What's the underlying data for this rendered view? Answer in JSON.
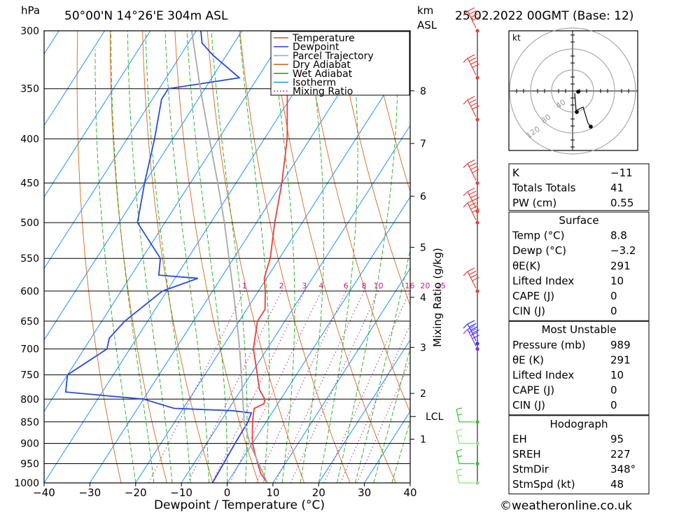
{
  "header": {
    "hpa_unit": "hPa",
    "location": "50°00'N 14°26'E 304m ASL",
    "km_unit": "km",
    "asl_unit": "ASL",
    "datetime": "25.02.2022 00GMT (Base: 12)"
  },
  "credit": "©weatheronline.co.uk",
  "colors": {
    "temperature": "#e8403a",
    "dewpoint": "#2b4bd8",
    "parcel": "#a8a8a8",
    "dry_adiabat": "#d2691e",
    "wet_adiabat": "#22aa22",
    "isotherm": "#1e90ff",
    "mixing_ratio": "#c0207a"
  },
  "chart_data": {
    "type": "line",
    "title": "50°00'N 14°26'E 304m ASL",
    "xlabel": "Dewpoint / Temperature (°C)",
    "ylabel": "hPa",
    "right_axis_label": "Mixing Ratio (g/kg)",
    "xlim": [
      -40,
      40
    ],
    "ylim": [
      1000,
      300
    ],
    "skew_deg_per_hpa_log": "skew-T",
    "x_ticks": [
      "−40",
      "−30",
      "−20",
      "−10",
      "0",
      "10",
      "20",
      "30",
      "40"
    ],
    "pressure_ticks": [
      "300",
      "350",
      "400",
      "450",
      "500",
      "550",
      "600",
      "650",
      "700",
      "750",
      "800",
      "850",
      "900",
      "950",
      "1000"
    ],
    "km_ticks": [
      "8",
      "7",
      "6",
      "5",
      "4",
      "3",
      "2",
      "1"
    ],
    "lcl_label": "LCL",
    "mixing_ratio_labels": [
      "1",
      "2",
      "3",
      "4",
      "6",
      "8",
      "10",
      "16",
      "20",
      "25"
    ],
    "legend": [
      "Temperature",
      "Dewpoint",
      "Parcel Trajectory",
      "Dry Adiabat",
      "Wet Adiabat",
      "Isotherm",
      "Mixing Ratio"
    ],
    "legend_position": "top-right",
    "series": [
      {
        "name": "Temperature",
        "points": [
          [
            1000,
            8.8
          ],
          [
            975,
            6
          ],
          [
            950,
            4
          ],
          [
            925,
            2
          ],
          [
            900,
            0
          ],
          [
            875,
            -1.5
          ],
          [
            850,
            -3
          ],
          [
            830,
            -4
          ],
          [
            820,
            -4.5
          ],
          [
            810,
            -3
          ],
          [
            800,
            -3.5
          ],
          [
            780,
            -6
          ],
          [
            750,
            -8.5
          ],
          [
            700,
            -13
          ],
          [
            650,
            -16
          ],
          [
            630,
            -16
          ],
          [
            600,
            -18.5
          ],
          [
            580,
            -20.5
          ],
          [
            570,
            -21
          ],
          [
            550,
            -22
          ],
          [
            500,
            -26
          ],
          [
            450,
            -30
          ],
          [
            400,
            -35
          ],
          [
            350,
            -42
          ],
          [
            320,
            -44
          ],
          [
            300,
            -46
          ]
        ]
      },
      {
        "name": "Dewpoint",
        "points": [
          [
            1000,
            -3.2
          ],
          [
            950,
            -3.5
          ],
          [
            900,
            -3.8
          ],
          [
            850,
            -4
          ],
          [
            830,
            -4.5
          ],
          [
            825,
            -9
          ],
          [
            820,
            -22
          ],
          [
            800,
            -30
          ],
          [
            785,
            -48
          ],
          [
            750,
            -50
          ],
          [
            700,
            -45
          ],
          [
            680,
            -46
          ],
          [
            650,
            -45
          ],
          [
            600,
            -41
          ],
          [
            580,
            -35
          ],
          [
            575,
            -44
          ],
          [
            550,
            -46
          ],
          [
            500,
            -56
          ],
          [
            450,
            -60
          ],
          [
            400,
            -64
          ],
          [
            360,
            -68
          ],
          [
            350,
            -68
          ],
          [
            345,
            -61
          ],
          [
            340,
            -54
          ],
          [
            320,
            -63
          ],
          [
            310,
            -67
          ],
          [
            300,
            -69
          ]
        ]
      },
      {
        "name": "Parcel Trajectory",
        "points": [
          [
            1000,
            8.8
          ],
          [
            950,
            4.2
          ],
          [
            900,
            -0.6
          ],
          [
            850,
            -4.8
          ],
          [
            800,
            -8.3
          ],
          [
            750,
            -12
          ],
          [
            700,
            -16
          ],
          [
            650,
            -20.5
          ],
          [
            600,
            -25.5
          ],
          [
            550,
            -31
          ],
          [
            500,
            -37
          ],
          [
            450,
            -44
          ],
          [
            400,
            -52
          ],
          [
            350,
            -61
          ],
          [
            300,
            -71
          ]
        ]
      }
    ],
    "wind_barbs": [
      "1000",
      "950",
      "900",
      "850",
      "700",
      "690",
      "600",
      "500",
      "485",
      "450",
      "380",
      "340",
      "300"
    ]
  },
  "hodograph": {
    "unit": "kt",
    "rings": [
      "40",
      "80",
      "120"
    ]
  },
  "indices": {
    "k_label": "K",
    "k_value": "−11",
    "tt_label": "Totals Totals",
    "tt_value": "41",
    "pw_label": "PW (cm)",
    "pw_value": "0.55"
  },
  "surface": {
    "title": "Surface",
    "rows": [
      {
        "label": "Temp (°C)",
        "value": "8.8"
      },
      {
        "label": "Dewp (°C)",
        "value": "−3.2"
      },
      {
        "label": "θE(K)",
        "value": "291"
      },
      {
        "label": "Lifted Index",
        "value": "10"
      },
      {
        "label": "CAPE (J)",
        "value": "0"
      },
      {
        "label": "CIN (J)",
        "value": "0"
      }
    ]
  },
  "most_unstable": {
    "title": "Most Unstable",
    "rows": [
      {
        "label": "Pressure (mb)",
        "value": "989"
      },
      {
        "label": "θE (K)",
        "value": "291"
      },
      {
        "label": "Lifted Index",
        "value": "10"
      },
      {
        "label": "CAPE (J)",
        "value": "0"
      },
      {
        "label": "CIN (J)",
        "value": "0"
      }
    ]
  },
  "hodograph_table": {
    "title": "Hodograph",
    "rows": [
      {
        "label": "EH",
        "value": "95"
      },
      {
        "label": "SREH",
        "value": "227"
      },
      {
        "label": "StmDir",
        "value": "348°"
      },
      {
        "label": "StmSpd (kt)",
        "value": "48"
      }
    ]
  }
}
